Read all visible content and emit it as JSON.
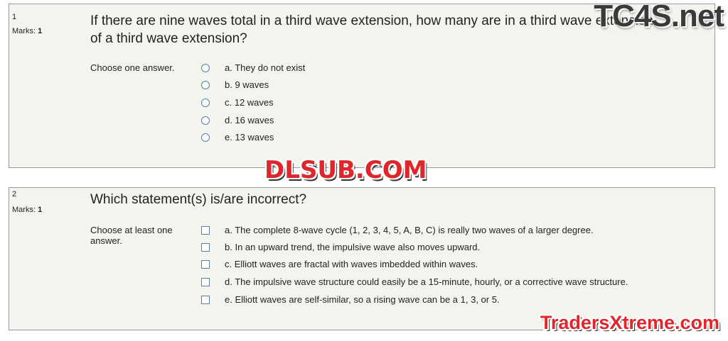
{
  "watermarks": {
    "top_right": "TC4S.net",
    "center": "DLSUB.COM",
    "bottom_right": "TradersXtreme.com"
  },
  "questions": [
    {
      "number": "1",
      "marks_label": "Marks:",
      "marks": "1",
      "text": "If there are nine waves total in a third wave extension, how many are in a third wave extension of a third wave extension?",
      "instruction": "Choose one answer.",
      "input": "radio",
      "options": [
        "a. They do not exist",
        "b. 9 waves",
        "c. 12 waves",
        "d. 16 waves",
        "e. 13 waves"
      ]
    },
    {
      "number": "2",
      "marks_label": "Marks:",
      "marks": "1",
      "text": "Which statement(s) is/are incorrect?",
      "instruction": "Choose at least one answer.",
      "input": "checkbox",
      "options": [
        "a. The complete 8-wave cycle (1, 2, 3, 4, 5, A, B, C) is really two waves of a larger degree.",
        "b. In an upward trend, the impulsive wave also moves upward.",
        "c. Elliott waves are fractal with waves imbedded within waves.",
        "d. The impulsive wave structure could easily be a 15-minute, hourly, or a corrective wave structure.",
        "e. Elliott waves are self-similar, so a rising wave can be a 1, 3, or 5."
      ]
    }
  ]
}
